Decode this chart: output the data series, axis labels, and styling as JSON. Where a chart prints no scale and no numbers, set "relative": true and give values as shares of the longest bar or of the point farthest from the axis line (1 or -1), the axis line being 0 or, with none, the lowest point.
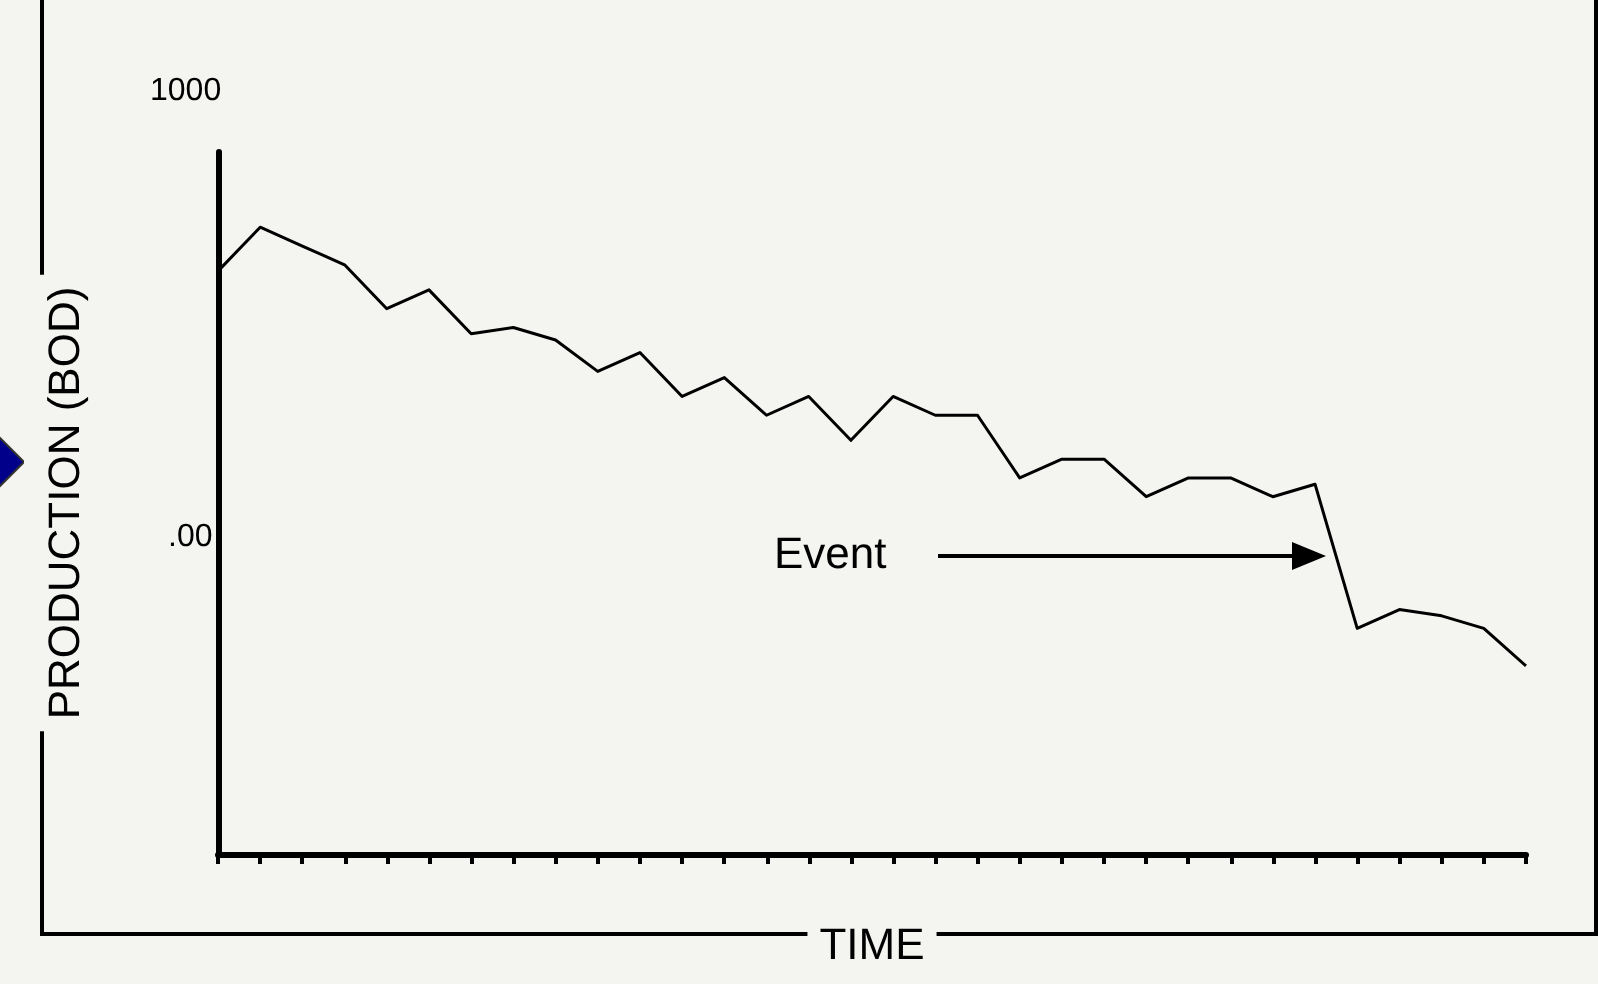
{
  "chart_data": {
    "type": "line",
    "xlabel": "TIME",
    "ylabel": "PRODUCTION (BOD)",
    "annotations": [
      "1000",
      ".00",
      "Event"
    ],
    "relative": true,
    "categories": [
      null,
      null,
      null,
      null,
      null,
      null,
      null,
      null,
      null,
      null,
      null,
      null,
      null,
      null,
      null,
      null,
      null,
      null,
      null,
      null,
      null,
      null,
      null,
      null,
      null,
      null,
      null,
      null,
      null,
      null,
      null,
      null
    ],
    "series": [
      {
        "color": "#000000",
        "values": [
          0.93,
          1,
          0.97,
          0.94,
          0.87,
          0.9,
          0.83,
          0.84,
          0.82,
          0.77,
          0.8,
          0.73,
          0.76,
          0.7,
          0.73,
          0.66,
          0.73,
          0.7,
          0.7,
          0.6,
          0.63,
          0.63,
          0.57,
          0.6,
          0.6,
          0.57,
          0.59,
          0.36,
          0.39,
          0.38,
          0.36,
          0.3
        ]
      }
    ],
    "marker": "none",
    "line_style": "solid",
    "grid": false
  }
}
